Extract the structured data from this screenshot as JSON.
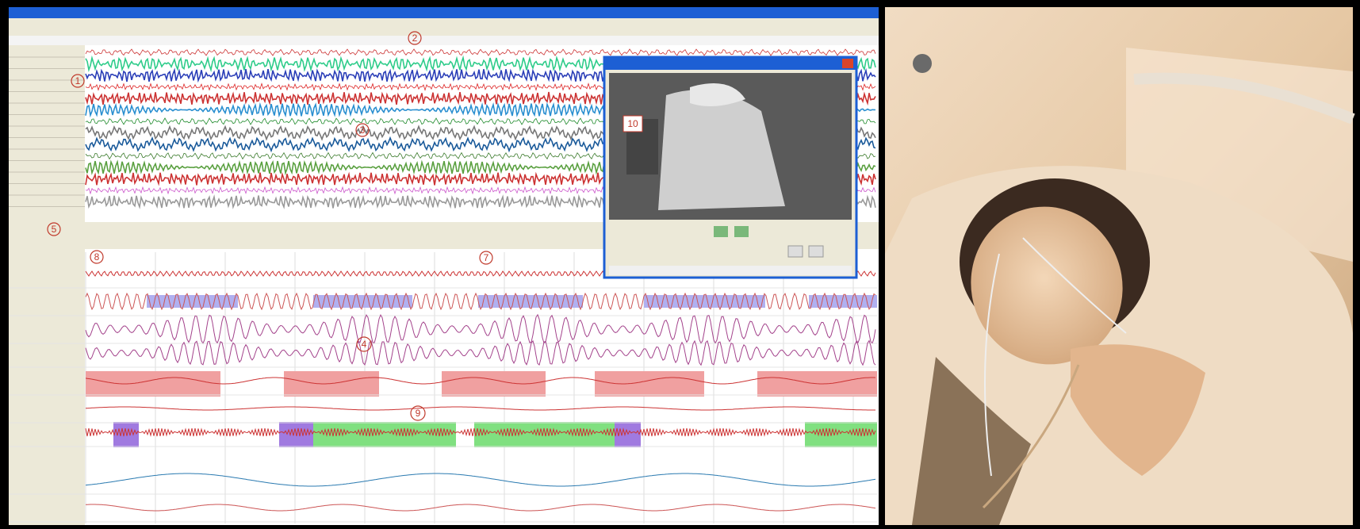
{
  "callouts": {
    "one": "1",
    "two": "2",
    "three": "3",
    "four": "4",
    "five": "5",
    "eight": "8",
    "seven": "7",
    "nine": "9",
    "ten": "10"
  }
}
